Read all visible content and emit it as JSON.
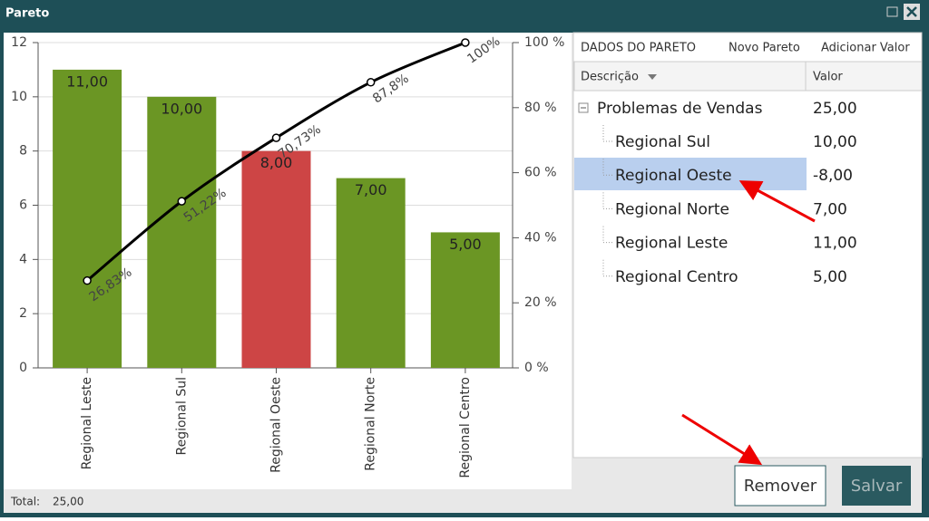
{
  "window": {
    "title": "Pareto"
  },
  "chart_data": {
    "type": "pareto",
    "categories": [
      "Regional Leste",
      "Regional Sul",
      "Regional Oeste",
      "Regional Norte",
      "Regional Centro"
    ],
    "values": [
      11,
      10,
      8,
      7,
      5
    ],
    "value_labels": [
      "11,00",
      "10,00",
      "8,00",
      "7,00",
      "5,00"
    ],
    "colors": [
      "#6b9624",
      "#6b9624",
      "#cd4545",
      "#6b9624",
      "#6b9624"
    ],
    "cumulative": {
      "color": "#000000",
      "values": [
        26.83,
        51.22,
        70.73,
        87.8,
        100
      ],
      "value_labels": [
        "26,83%",
        "51,22%",
        "70,73%",
        "87,8%",
        "100%"
      ]
    },
    "ylim": [
      0,
      12
    ],
    "yticks": [
      0,
      2,
      4,
      6,
      8,
      10,
      12
    ],
    "y2lim": [
      0,
      100
    ],
    "y2ticks": [
      {
        "value": 0,
        "label": "0 %"
      },
      {
        "value": 20,
        "label": "20 %"
      },
      {
        "value": 40,
        "label": "40 %"
      },
      {
        "value": 60,
        "label": "60 %"
      },
      {
        "value": 80,
        "label": "80 %"
      },
      {
        "value": 100,
        "label": "100 %"
      }
    ],
    "grid": true
  },
  "status": {
    "label": "Total:",
    "value": "25,00"
  },
  "panel": {
    "tabs": [
      "DADOS DO PARETO",
      "Novo Pareto",
      "Adicionar Valor"
    ],
    "columns": [
      "Descrição",
      "Valor"
    ],
    "root": {
      "label": "Problemas de Vendas",
      "value": "25,00"
    },
    "rows": [
      {
        "label": "Regional Sul",
        "value": "10,00"
      },
      {
        "label": "Regional Oeste",
        "value": "-8,00"
      },
      {
        "label": "Regional Norte",
        "value": "7,00"
      },
      {
        "label": "Regional Leste",
        "value": "11,00"
      },
      {
        "label": "Regional Centro",
        "value": "5,00"
      }
    ]
  },
  "buttons": {
    "remove": "Remover",
    "save": "Salvar"
  }
}
